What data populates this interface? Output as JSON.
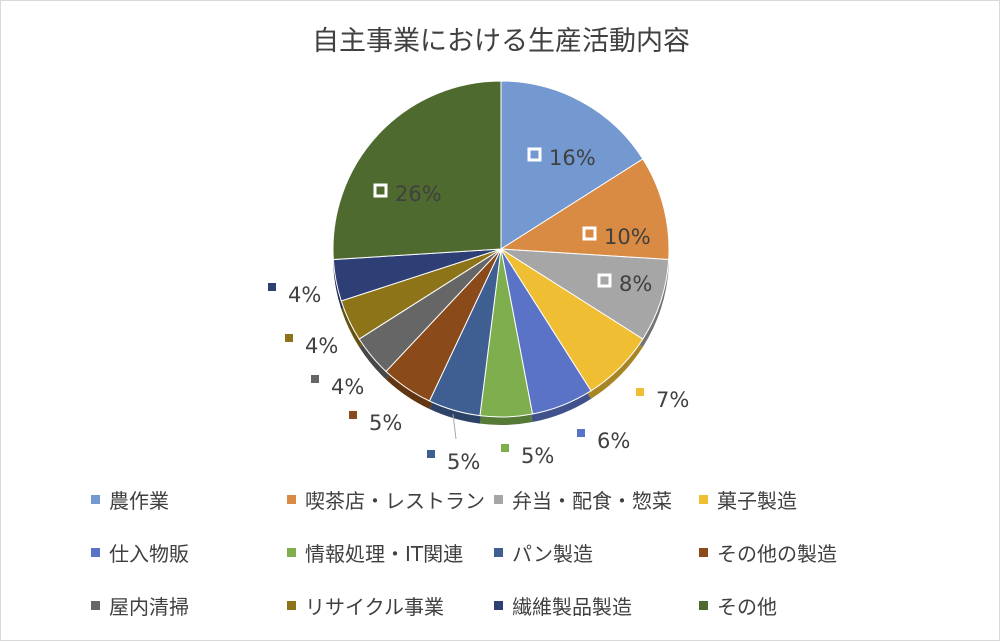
{
  "chart_data": {
    "type": "pie",
    "title": "自主事業における生産活動内容",
    "categories": [
      "農作業",
      "喫茶店・レストラン",
      "弁当・配食・惣菜",
      "菓子製造",
      "仕入物販",
      "情報処理・IT関連",
      "パン製造",
      "その他の製造",
      "屋内清掃",
      "リサイクル事業",
      "繊維製品製造",
      "その他"
    ],
    "values": [
      16,
      10,
      8,
      7,
      6,
      5,
      5,
      5,
      4,
      4,
      4,
      26
    ],
    "labels": [
      "16%",
      "10%",
      "8%",
      "7%",
      "6%",
      "5%",
      "5%",
      "5%",
      "4%",
      "4%",
      "4%",
      "26%"
    ],
    "colors": [
      "#7399D0",
      "#D98A43",
      "#A6A6A6",
      "#EFBE33",
      "#5B73C6",
      "#7EAE4E",
      "#3F5E91",
      "#8B4A1A",
      "#666666",
      "#8D7419",
      "#2E3F76",
      "#4F6A2F"
    ],
    "legend_position": "bottom"
  }
}
